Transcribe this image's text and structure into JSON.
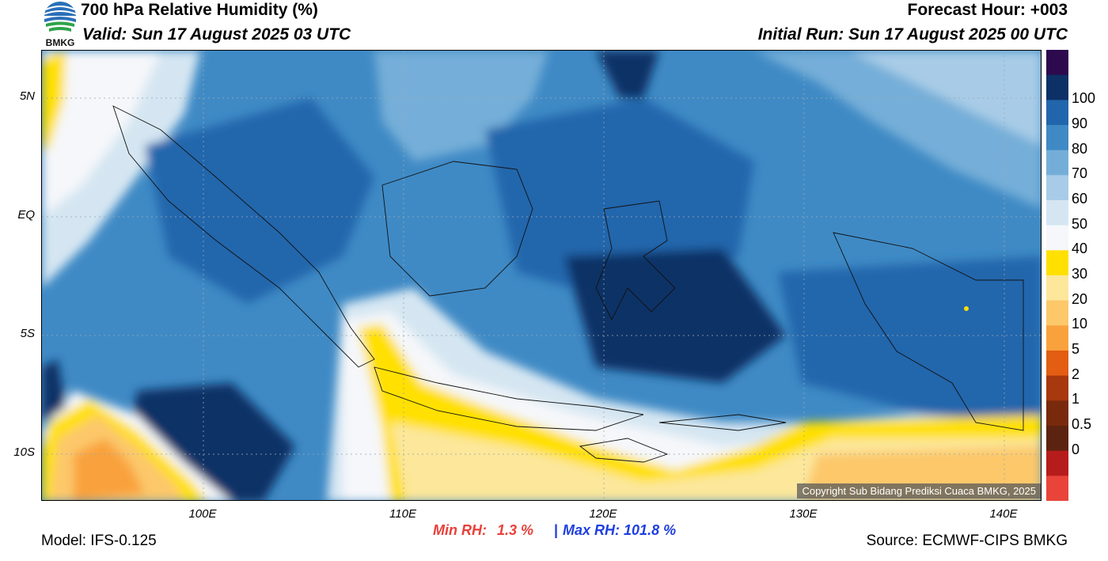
{
  "header": {
    "title": "700 hPa Relative Humidity (%)",
    "valid": "Valid: Sun 17 August 2025 03 UTC",
    "forecast_hour": "Forecast Hour: +003",
    "initial_run": "Initial Run: Sun 17 August 2025 00 UTC",
    "logo_text": "BMKG"
  },
  "axes": {
    "lat_labels": [
      "5N",
      "EQ",
      "5S",
      "10S"
    ],
    "lon_labels": [
      "100E",
      "110E",
      "120E",
      "130E",
      "140E"
    ]
  },
  "colorbar": {
    "labels": [
      "100",
      "90",
      "80",
      "70",
      "60",
      "50",
      "40",
      "30",
      "20",
      "10",
      "5",
      "2",
      "1",
      "0.5",
      "0"
    ],
    "colors": [
      "#2d0a4e",
      "#0d3166",
      "#2166ac",
      "#3f8ac5",
      "#74aed8",
      "#a8cce7",
      "#d5e6f2",
      "#f5f7fa",
      "#ffe000",
      "#fce79b",
      "#fcc86a",
      "#f9a23d",
      "#e35d12",
      "#a8380d",
      "#7a2a0c",
      "#5c2410",
      "#b71c1c",
      "#e8443a"
    ]
  },
  "stats": {
    "min_label": "Min RH:",
    "min_value": "1.3 %",
    "separator": "|",
    "max_label": "Max RH:",
    "max_value": "101.8 %",
    "min_color": "#e8403a",
    "max_color": "#1f3fe0"
  },
  "footer": {
    "model": "Model: IFS-0.125",
    "source": "Source: ECMWF-CIPS BMKG",
    "copyright": "Copyright Sub Bidang Prediksi Cuaca BMKG, 2025"
  }
}
